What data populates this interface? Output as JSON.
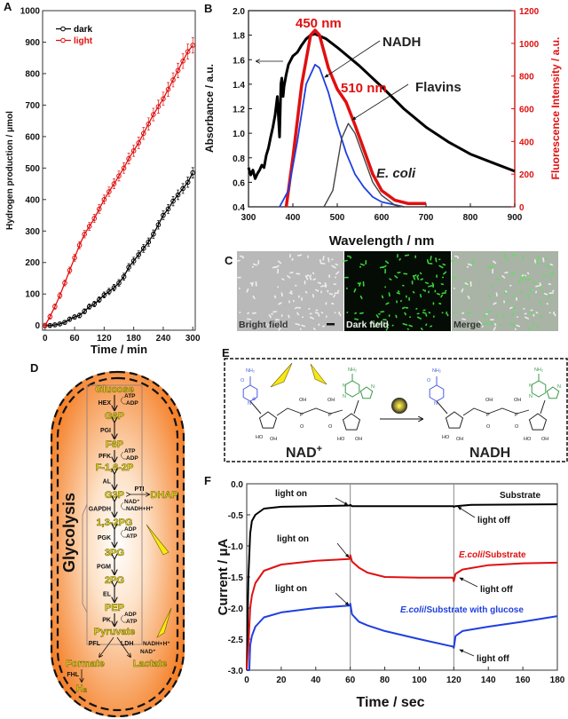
{
  "panel_labels": [
    "A",
    "B",
    "C",
    "D",
    "E",
    "F"
  ],
  "chart_data": [
    {
      "type": "line",
      "panel": "A",
      "xlabel": "Time / min",
      "ylabel": "Hydrogen production / μmol",
      "xlim": [
        -5,
        305
      ],
      "ylim": [
        -15,
        1000
      ],
      "xticks": [
        0,
        60,
        120,
        180,
        240,
        300
      ],
      "yticks": [
        0,
        100,
        200,
        300,
        400,
        500,
        600,
        700,
        800,
        900,
        1000
      ],
      "legend": "top-left",
      "grid": false,
      "x": [
        0,
        10,
        20,
        30,
        40,
        50,
        60,
        70,
        80,
        90,
        100,
        110,
        120,
        130,
        140,
        150,
        160,
        170,
        180,
        190,
        200,
        210,
        220,
        230,
        240,
        250,
        260,
        270,
        280,
        290,
        300
      ],
      "series": [
        {
          "name": "dark",
          "color": "#000000",
          "values": [
            0,
            0,
            2,
            5,
            10,
            20,
            27,
            32,
            45,
            60,
            68,
            82,
            97,
            108,
            120,
            135,
            155,
            185,
            205,
            225,
            245,
            265,
            290,
            320,
            350,
            370,
            395,
            415,
            435,
            455,
            485
          ],
          "error": 12
        },
        {
          "name": "light",
          "color": "#e01010",
          "values": [
            0,
            28,
            60,
            95,
            135,
            175,
            215,
            255,
            290,
            315,
            340,
            370,
            400,
            425,
            450,
            475,
            500,
            530,
            555,
            580,
            610,
            640,
            670,
            695,
            720,
            750,
            780,
            810,
            840,
            870,
            890
          ],
          "error": 18
        }
      ]
    },
    {
      "type": "line",
      "panel": "B",
      "xlabel": "Wavelength / nm",
      "ylabel": "Absorbance / a.u.",
      "ylabel_right": "Fluorescence Intensity / a.u.",
      "xlim": [
        300,
        900
      ],
      "ylim": [
        0.4,
        2.0
      ],
      "ylim_right": [
        0,
        1200
      ],
      "xticks": [
        300,
        400,
        500,
        600,
        700,
        800,
        900
      ],
      "yticks": [
        "0.4",
        "0.6",
        "0.8",
        "1.0",
        "1.2",
        "1.4",
        "1.6",
        "1.8",
        "2.0"
      ],
      "yticks_right": [
        0,
        200,
        400,
        600,
        800,
        1000,
        1200
      ],
      "right_axis_color": "#e01010",
      "series": [
        {
          "axis": "left",
          "color": "#000000",
          "x": [
            300,
            305,
            310,
            315,
            320,
            325,
            330,
            335,
            340,
            345,
            350,
            355,
            360,
            365,
            368,
            370,
            373,
            375,
            378,
            380,
            385,
            390,
            400,
            410,
            420,
            430,
            440,
            450,
            475,
            500,
            550,
            600,
            650,
            700,
            750,
            800,
            850,
            900
          ],
          "values": [
            0.72,
            0.66,
            0.7,
            0.63,
            0.67,
            0.7,
            0.74,
            0.72,
            0.82,
            0.88,
            0.97,
            1.05,
            1.15,
            1.3,
            1.1,
            0.97,
            1.4,
            1.45,
            1.3,
            1.38,
            1.48,
            1.56,
            1.63,
            1.66,
            1.72,
            1.77,
            1.8,
            1.81,
            1.77,
            1.7,
            1.55,
            1.38,
            1.2,
            1.05,
            0.93,
            0.83,
            0.76,
            0.69
          ]
        },
        {
          "axis": "right",
          "color": "#e01010",
          "x": [
            385,
            400,
            420,
            440,
            450,
            460,
            480,
            500,
            520,
            540,
            560,
            580,
            600,
            630,
            660,
            700
          ],
          "values": [
            0,
            300,
            750,
            1050,
            1080,
            1050,
            850,
            720,
            640,
            500,
            350,
            200,
            100,
            40,
            20,
            20
          ]
        },
        {
          "axis": "right",
          "color": "#1f3fe0",
          "x": [
            370,
            390,
            410,
            430,
            450,
            460,
            480,
            500,
            520,
            540,
            560,
            580,
            600,
            650
          ],
          "values": [
            0,
            100,
            400,
            750,
            870,
            850,
            700,
            500,
            330,
            200,
            120,
            60,
            30,
            0
          ]
        },
        {
          "axis": "right",
          "color": "#444444",
          "x": [
            470,
            490,
            510,
            525,
            540,
            560,
            580,
            600,
            630,
            650
          ],
          "values": [
            0,
            100,
            420,
            510,
            450,
            300,
            150,
            70,
            10,
            0
          ]
        }
      ],
      "annotations": [
        "450 nm",
        "NADH",
        "510 nm",
        "Flavins",
        "E. coli"
      ]
    },
    {
      "type": "line",
      "panel": "F",
      "xlabel": "Time / sec",
      "ylabel": "Current / μA",
      "xlim": [
        0,
        180
      ],
      "ylim": [
        -3.0,
        0.0
      ],
      "xticks": [
        0,
        20,
        40,
        60,
        80,
        100,
        120,
        140,
        160,
        180
      ],
      "yticks": [
        "-3.0",
        "-2.5",
        "-2.0",
        "-1.5",
        "-1.0",
        "-0.5",
        "0.0"
      ],
      "vlines": [
        60,
        120
      ],
      "series": [
        {
          "name": "Substrate",
          "color": "#000000",
          "x": [
            0,
            1,
            2,
            3,
            5,
            10,
            20,
            40,
            59.5,
            60,
            61,
            80,
            119.5,
            120,
            121,
            130,
            180
          ],
          "values": [
            -3,
            -1.5,
            -0.8,
            -0.6,
            -0.5,
            -0.4,
            -0.37,
            -0.36,
            -0.35,
            -0.34,
            -0.36,
            -0.36,
            -0.36,
            -0.37,
            -0.36,
            -0.34,
            -0.33
          ]
        },
        {
          "name": "E.coli/Substrate",
          "color": "#e01010",
          "x": [
            0,
            1,
            2,
            3,
            5,
            10,
            20,
            40,
            59.5,
            60,
            61,
            65,
            70,
            80,
            100,
            119.5,
            120,
            121,
            125,
            140,
            160,
            180
          ],
          "values": [
            -3,
            -2.6,
            -2.0,
            -1.8,
            -1.6,
            -1.4,
            -1.3,
            -1.24,
            -1.21,
            -1.15,
            -1.25,
            -1.35,
            -1.43,
            -1.5,
            -1.51,
            -1.51,
            -1.57,
            -1.45,
            -1.38,
            -1.31,
            -1.28,
            -1.27
          ]
        },
        {
          "name": "E.coli/Substrate with glucose",
          "color": "#1f3fe0",
          "x": [
            0,
            1.5,
            2,
            3,
            5,
            10,
            20,
            40,
            59.5,
            60,
            61,
            65,
            70,
            80,
            100,
            119.5,
            120,
            121,
            125,
            140,
            160,
            180
          ],
          "values": [
            -3,
            -3,
            -2.6,
            -2.45,
            -2.3,
            -2.15,
            -2.07,
            -2.0,
            -1.96,
            -1.93,
            -2.1,
            -2.22,
            -2.28,
            -2.37,
            -2.5,
            -2.62,
            -2.64,
            -2.45,
            -2.37,
            -2.3,
            -2.22,
            -2.13
          ]
        }
      ],
      "annotations": {
        "light_on": "light on",
        "light_off": "light off",
        "substrate": "Substrate",
        "ecoli_substrate_italic": "E.coli",
        "ecoli_substrate_rest": "/Substrate",
        "ecoli_glucose_italic": "E.coli",
        "ecoli_glucose_rest": "/Substrate with glucose"
      }
    }
  ],
  "panel_c": {
    "images": [
      "Bright field",
      "Dark field",
      "Merge"
    ]
  },
  "panel_d": {
    "title": "Glycolysis",
    "metabolites": [
      "Glucose",
      "G6P",
      "F6P",
      "F-1,6-2P",
      "G3P",
      "1,3-2PG",
      "3PG",
      "2PG",
      "PEP",
      "Pyruvate",
      "DHAP",
      "Formate",
      "Lactate",
      "H₂"
    ],
    "enzymes": [
      "HEX",
      "PGI",
      "PFK",
      "AL",
      "GAPDH",
      "PGK",
      "PGM",
      "EL",
      "PK",
      "PTI",
      "PFL",
      "LDH",
      "FHL"
    ],
    "cofactors": [
      [
        "ATP",
        "ADP"
      ],
      [],
      [
        "ATP",
        "ADP"
      ],
      [],
      [
        "NAD⁺",
        "NADH+H⁺"
      ],
      [
        "ADP",
        "ATP"
      ],
      [],
      [],
      [
        "ADP",
        "ATP"
      ]
    ],
    "ldh_cofactors": [
      "NADH+H⁺",
      "NAD⁺"
    ],
    "colors": {
      "cell": "#f47a1f",
      "metabolite": "#e4dc2a",
      "light": "#f7e813"
    }
  },
  "panel_e": {
    "reactant": "NAD",
    "reactant_charge": "+",
    "product": "NADH",
    "atoms": {
      "amide_n": "NH₂",
      "o": "O",
      "n": "N",
      "oh": "OH",
      "ho": "HO",
      "p": "P",
      "plus": "⊕",
      "electron": "e"
    },
    "colors": {
      "nicotinamide": "#4a5ee0",
      "adenine": "#3a9a4a"
    }
  }
}
